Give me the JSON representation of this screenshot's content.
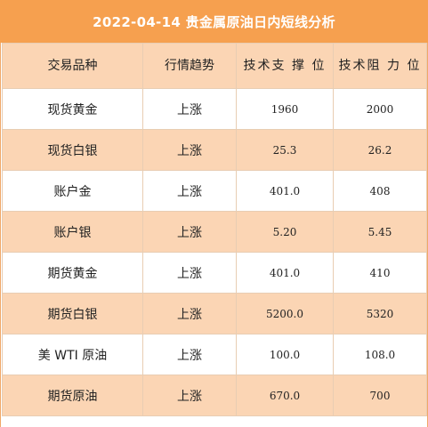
{
  "title": "2022-04-14 贵金属原油日内短线分析",
  "table": {
    "headers": [
      "交易品种",
      "行情趋势",
      "技术支 撑 位",
      "技术阻 力 位"
    ],
    "rows": [
      {
        "name": "现货黄金",
        "trend": "上涨",
        "support": "1960",
        "resistance": "2000"
      },
      {
        "name": "现货白银",
        "trend": "上涨",
        "support": "25.3",
        "resistance": "26.2"
      },
      {
        "name": "账户金",
        "trend": "上涨",
        "support": "401.0",
        "resistance": "408"
      },
      {
        "name": "账户银",
        "trend": "上涨",
        "support": "5.20",
        "resistance": "5.45"
      },
      {
        "name": "期货黄金",
        "trend": "上涨",
        "support": "401.0",
        "resistance": "410"
      },
      {
        "name": "期货白银",
        "trend": "上涨",
        "support": "5200.0",
        "resistance": "5320"
      },
      {
        "name": "美 WTI 原油",
        "trend": "上涨",
        "support": "100.0",
        "resistance": "108.0"
      },
      {
        "name": "期货原油",
        "trend": "上涨",
        "support": "670.0",
        "resistance": "700"
      }
    ]
  },
  "colors": {
    "title_bg": "#f6a04f",
    "stripe": "#fbd5b4"
  }
}
